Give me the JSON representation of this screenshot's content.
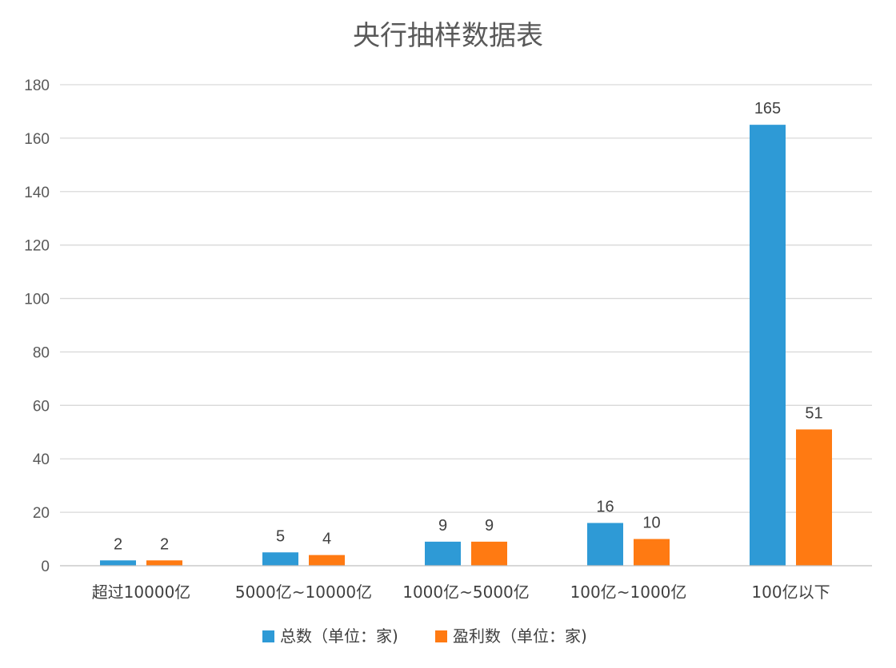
{
  "chart_data": {
    "type": "bar",
    "title": "央行抽样数据表",
    "categories": [
      "超过10000亿",
      "5000亿~10000亿",
      "1000亿~5000亿",
      "100亿~1000亿",
      "100亿以下"
    ],
    "series": [
      {
        "name": "总数（单位：家)",
        "values": [
          2,
          5,
          9,
          16,
          165
        ],
        "color": "#2E9AD6"
      },
      {
        "name": "盈利数（单位：家)",
        "values": [
          2,
          4,
          9,
          10,
          51
        ],
        "color": "#FF7A12"
      }
    ],
    "yticks": [
      0,
      20,
      40,
      60,
      80,
      100,
      120,
      140,
      160,
      180
    ],
    "ylim": [
      0,
      180
    ],
    "grid": true,
    "legend_position": "bottom"
  }
}
